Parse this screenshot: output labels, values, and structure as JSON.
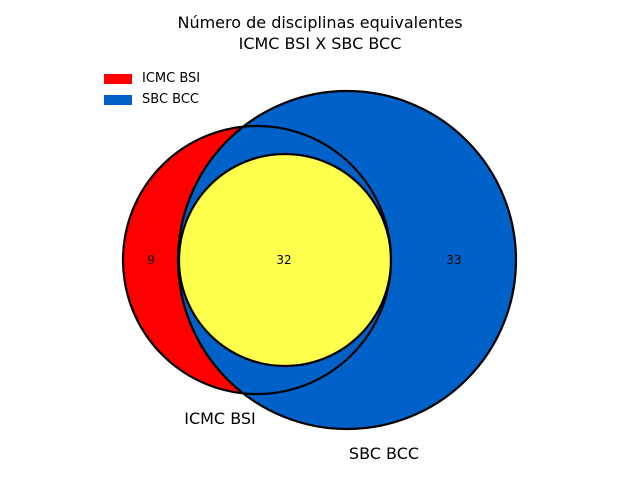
{
  "title": {
    "line1": "Número de disciplinas equivalentes",
    "line2": "ICMC BSI X SBC BCC"
  },
  "legend": [
    {
      "label": "ICMC BSI",
      "color": "#ff0000"
    },
    {
      "label": "SBC BCC",
      "color": "#0061c8"
    }
  ],
  "chart_data": {
    "type": "venn",
    "sets": [
      {
        "name": "ICMC BSI",
        "color": "#ff0000",
        "only": 9
      },
      {
        "name": "SBC BCC",
        "color": "#0061c8",
        "only": 33
      }
    ],
    "intersection": {
      "value": 32,
      "color": "#ffff4d"
    },
    "region_labels": [
      "9",
      "32",
      "33"
    ],
    "set_labels": [
      "ICMC BSI",
      "SBC BCC"
    ]
  }
}
